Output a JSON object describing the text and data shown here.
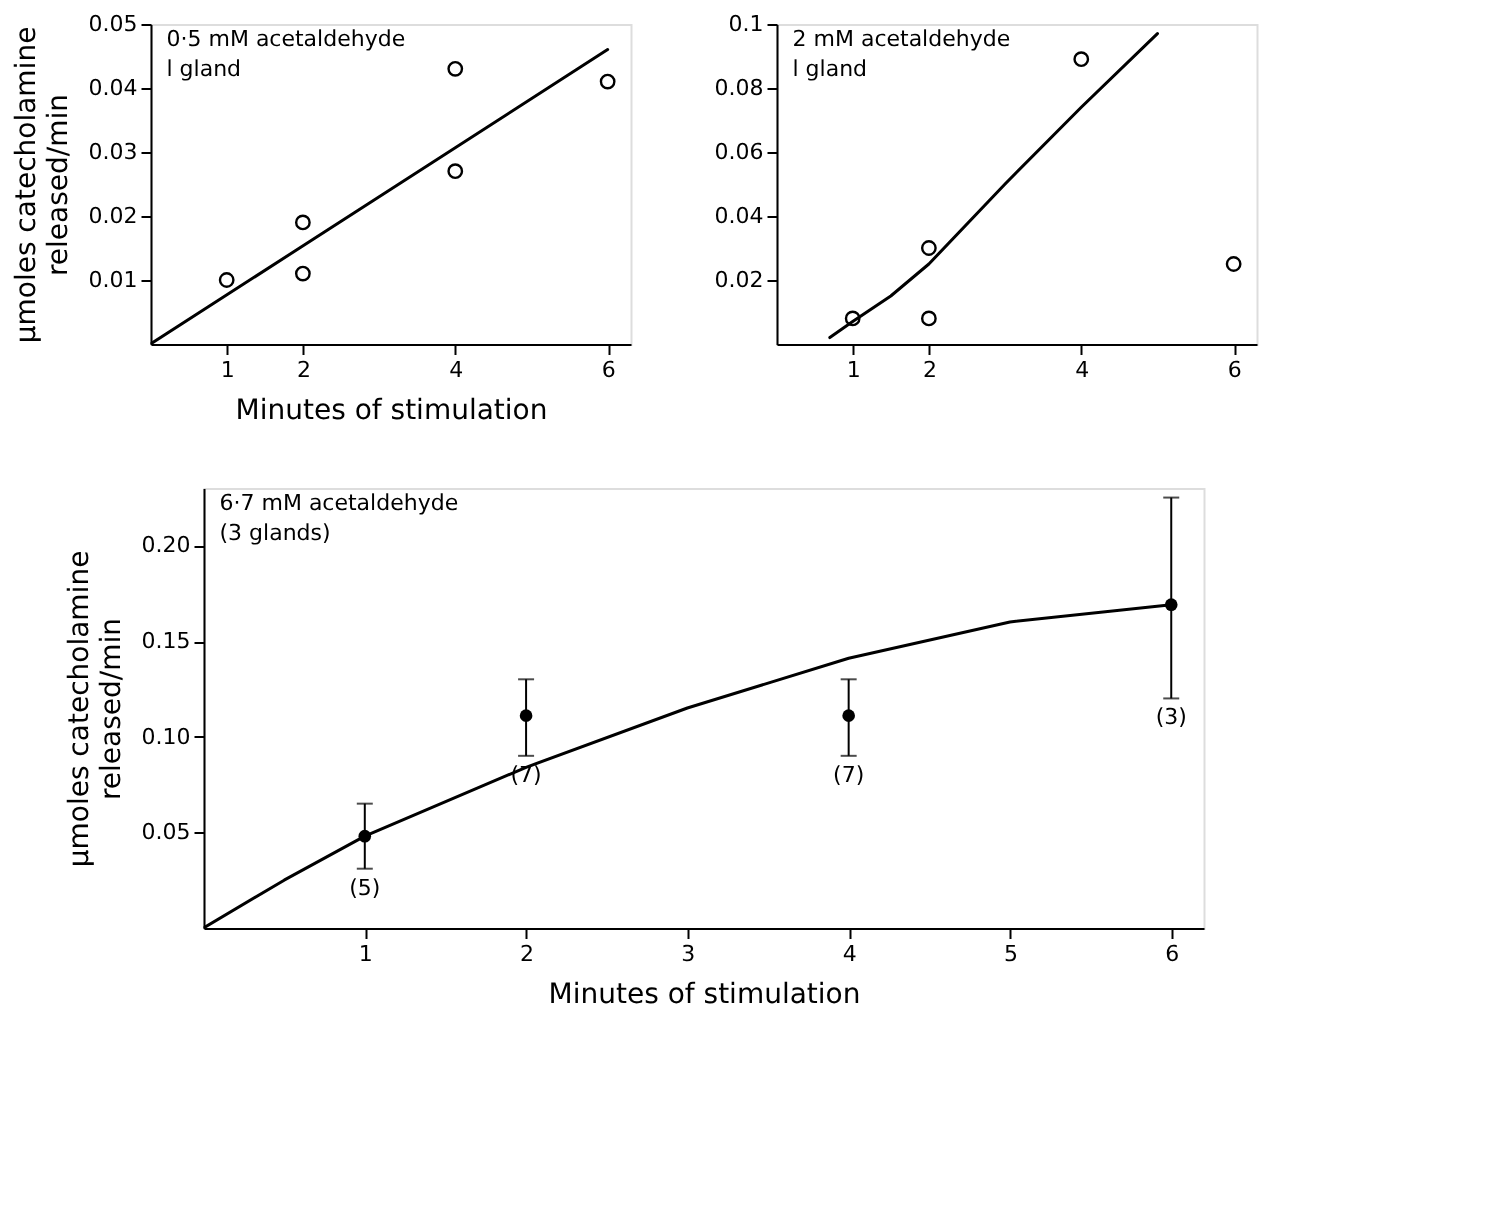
{
  "chart_data": [
    {
      "type": "scatter",
      "xlabel": "Minutes of stimulation",
      "ylabel": "μmoles catecholamine released/min",
      "annotations": [
        "0·5 mM acetaldehyde",
        "l gland"
      ],
      "xlim": [
        0,
        6.3
      ],
      "xticks": [
        1,
        2,
        4,
        6
      ],
      "ylim": [
        0,
        0.05
      ],
      "yticks": [
        0.01,
        0.02,
        0.03,
        0.04,
        0.05
      ],
      "grid": false,
      "legend": false,
      "series": [
        {
          "color": "#000000",
          "marker": "circle",
          "x": [
            1,
            2,
            2,
            4,
            4,
            6
          ],
          "values": [
            0.01,
            0.019,
            0.011,
            0.043,
            0.027,
            0.041
          ]
        },
        {
          "type": "line",
          "color": "#000000",
          "line_style": "solid",
          "x": [
            0,
            6
          ],
          "values": [
            0,
            0.046
          ]
        }
      ]
    },
    {
      "type": "scatter",
      "annotations": [
        "2 mM acetaldehyde",
        "l gland"
      ],
      "xlim": [
        0,
        6.3
      ],
      "xticks": [
        1,
        2,
        4,
        6
      ],
      "ylim": [
        0,
        0.1
      ],
      "yticks": [
        0.02,
        0.04,
        0.06,
        0.08,
        0.1
      ],
      "grid": false,
      "legend": false,
      "series": [
        {
          "color": "#000000",
          "marker": "circle",
          "x": [
            1,
            2,
            2,
            4,
            6
          ],
          "values": [
            0.008,
            0.03,
            0.008,
            0.089,
            0.025
          ]
        },
        {
          "type": "line",
          "color": "#000000",
          "line_style": "solid",
          "x": [
            0.7,
            1,
            1.5,
            2,
            3,
            4,
            5
          ],
          "values": [
            0.002,
            0.007,
            0.015,
            0.025,
            0.05,
            0.074,
            0.097
          ]
        }
      ]
    },
    {
      "type": "scatter",
      "xlabel": "Minutes of stimulation",
      "ylabel": "μmoles catecholamine released/min",
      "annotations": [
        "6·7 mM acetaldehyde",
        "(3 glands)",
        {
          "text": "(5)",
          "x": 1,
          "y": 0.031
        },
        {
          "text": "(7)",
          "x": 2,
          "y": 0.09
        },
        {
          "text": "(7)",
          "x": 4,
          "y": 0.09
        },
        {
          "text": "(3)",
          "x": 6,
          "y": 0.12
        }
      ],
      "xlim": [
        0,
        6.2
      ],
      "xticks": [
        1,
        2,
        3,
        4,
        5,
        6
      ],
      "ylim": [
        0,
        0.23
      ],
      "yticks": [
        0.05,
        {
          "value": 0.1,
          "label": "0.10"
        },
        0.15,
        {
          "value": 0.2,
          "label": "0.20"
        }
      ],
      "grid": false,
      "legend": false,
      "series": [
        {
          "color": "#000000",
          "marker": "circle",
          "x": [
            1,
            2,
            4,
            6
          ],
          "values": [
            0.048,
            0.111,
            0.111,
            0.169
          ],
          "errors": [
            [
              0.031,
              0.065
            ],
            [
              0.09,
              0.13
            ],
            [
              0.09,
              0.13
            ],
            [
              0.12,
              0.225
            ]
          ]
        },
        {
          "type": "line",
          "color": "#000000",
          "line_style": "solid",
          "x": [
            0,
            0.5,
            1,
            2,
            3,
            4,
            5,
            6
          ],
          "values": [
            0,
            0.025,
            0.048,
            0.084,
            0.115,
            0.141,
            0.16,
            0.169
          ]
        }
      ]
    }
  ]
}
